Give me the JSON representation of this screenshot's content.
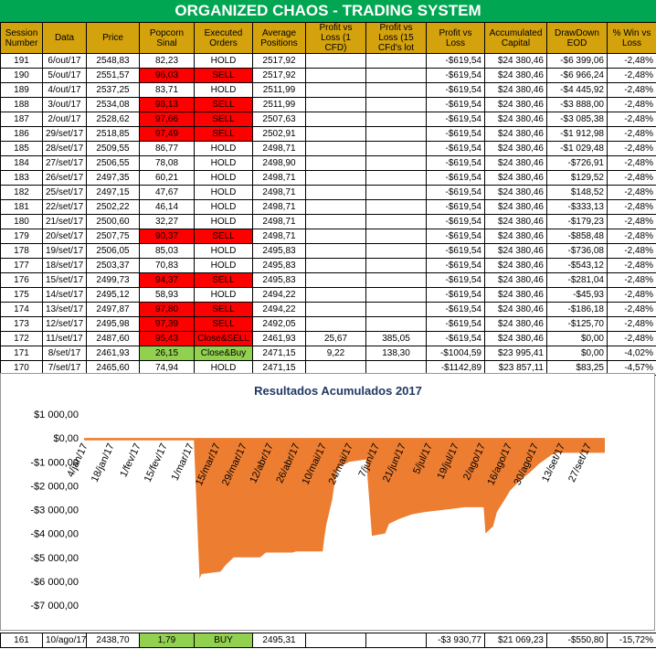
{
  "header": {
    "title": "ORGANIZED CHAOS - TRADING SYSTEM"
  },
  "table": {
    "columns": [
      "Session Number",
      "Data",
      "Price",
      "Popcorn Sinal",
      "Executed Orders",
      "Average Positions",
      "Profit vs Loss (1 CFD)",
      "Profit vs Loss (15 CFd's lot",
      "Profit vs Loss",
      "Accumulated Capital",
      "DrawDown EOD",
      "% Win vs Loss"
    ],
    "rows": [
      {
        "cells": [
          "191",
          "6/out/17",
          "2548,83",
          "82,23",
          "HOLD",
          "2517,92",
          null,
          null,
          "-$619,54",
          "$24 380,46",
          "-$6 399,06",
          "-2,48%"
        ]
      },
      {
        "cells": [
          "190",
          "5/out/17",
          "2551,57",
          "96,03",
          "SELL",
          "2517,92",
          null,
          null,
          "-$619,54",
          "$24 380,46",
          "-$6 966,24",
          "-2,48%"
        ],
        "signal_color": "#ff0000"
      },
      {
        "cells": [
          "189",
          "4/out/17",
          "2537,25",
          "83,71",
          "HOLD",
          "2511,99",
          null,
          null,
          "-$619,54",
          "$24 380,46",
          "-$4 445,92",
          "-2,48%"
        ]
      },
      {
        "cells": [
          "188",
          "3/out/17",
          "2534,08",
          "98,13",
          "SELL",
          "2511,99",
          null,
          null,
          "-$619,54",
          "$24 380,46",
          "-$3 888,00",
          "-2,48%"
        ],
        "signal_color": "#ff0000"
      },
      {
        "cells": [
          "187",
          "2/out/17",
          "2528,62",
          "97,66",
          "SELL",
          "2507,63",
          null,
          null,
          "-$619,54",
          "$24 380,46",
          "-$3 085,38",
          "-2,48%"
        ],
        "signal_color": "#ff0000"
      },
      {
        "cells": [
          "186",
          "29/set/17",
          "2518,85",
          "97,49",
          "SELL",
          "2502,91",
          null,
          null,
          "-$619,54",
          "$24 380,46",
          "-$1 912,98",
          "-2,48%"
        ],
        "signal_color": "#ff0000"
      },
      {
        "cells": [
          "185",
          "28/set/17",
          "2509,55",
          "86,77",
          "HOLD",
          "2498,71",
          null,
          null,
          "-$619,54",
          "$24 380,46",
          "-$1 029,48",
          "-2,48%"
        ]
      },
      {
        "cells": [
          "184",
          "27/set/17",
          "2506,55",
          "78,08",
          "HOLD",
          "2498,90",
          null,
          null,
          "-$619,54",
          "$24 380,46",
          "-$726,91",
          "-2,48%"
        ]
      },
      {
        "cells": [
          "183",
          "26/set/17",
          "2497,35",
          "60,21",
          "HOLD",
          "2498,71",
          null,
          null,
          "-$619,54",
          "$24 380,46",
          "$129,52",
          "-2,48%"
        ]
      },
      {
        "cells": [
          "182",
          "25/set/17",
          "2497,15",
          "47,67",
          "HOLD",
          "2498,71",
          null,
          null,
          "-$619,54",
          "$24 380,46",
          "$148,52",
          "-2,48%"
        ]
      },
      {
        "cells": [
          "181",
          "22/set/17",
          "2502,22",
          "46,14",
          "HOLD",
          "2498,71",
          null,
          null,
          "-$619,54",
          "$24 380,46",
          "-$333,13",
          "-2,48%"
        ]
      },
      {
        "cells": [
          "180",
          "21/set/17",
          "2500,60",
          "32,27",
          "HOLD",
          "2498,71",
          null,
          null,
          "-$619,54",
          "$24 380,46",
          "-$179,23",
          "-2,48%"
        ]
      },
      {
        "cells": [
          "179",
          "20/set/17",
          "2507,75",
          "90,37",
          "SELL",
          "2498,71",
          null,
          null,
          "-$619,54",
          "$24 380,46",
          "-$858,48",
          "-2,48%"
        ],
        "signal_color": "#ff0000"
      },
      {
        "cells": [
          "178",
          "19/set/17",
          "2506,05",
          "85,03",
          "HOLD",
          "2495,83",
          null,
          null,
          "-$619,54",
          "$24 380,46",
          "-$736,08",
          "-2,48%"
        ]
      },
      {
        "cells": [
          "177",
          "18/set/17",
          "2503,37",
          "70,83",
          "HOLD",
          "2495,83",
          null,
          null,
          "-$619,54",
          "$24 380,46",
          "-$543,12",
          "-2,48%"
        ]
      },
      {
        "cells": [
          "176",
          "15/set/17",
          "2499,73",
          "94,37",
          "SELL",
          "2495,83",
          null,
          null,
          "-$619,54",
          "$24 380,46",
          "-$281,04",
          "-2,48%"
        ],
        "signal_color": "#ff0000"
      },
      {
        "cells": [
          "175",
          "14/set/17",
          "2495,12",
          "58,93",
          "HOLD",
          "2494,22",
          null,
          null,
          "-$619,54",
          "$24 380,46",
          "-$45,93",
          "-2,48%"
        ]
      },
      {
        "cells": [
          "174",
          "13/set/17",
          "2497,87",
          "97,80",
          "SELL",
          "2494,22",
          null,
          null,
          "-$619,54",
          "$24 380,46",
          "-$186,18",
          "-2,48%"
        ],
        "signal_color": "#ff0000"
      },
      {
        "cells": [
          "173",
          "12/set/17",
          "2495,98",
          "97,39",
          "SELL",
          "2492,05",
          null,
          null,
          "-$619,54",
          "$24 380,46",
          "-$125,70",
          "-2,48%"
        ],
        "signal_color": "#ff0000"
      },
      {
        "cells": [
          "172",
          "11/set/17",
          "2487,60",
          "95,43",
          "Close&SELL",
          "2461,93",
          "25,67",
          "385,05",
          "-$619,54",
          "$24 380,46",
          "$0,00",
          "-2,48%"
        ],
        "signal_color": "#ff0000"
      },
      {
        "cells": [
          "171",
          "8/set/17",
          "2461,93",
          "26,15",
          "Close&Buy",
          "2471,15",
          "9,22",
          "138,30",
          "-$1004,59",
          "$23 995,41",
          "$0,00",
          "-4,02%"
        ],
        "signal_color": "#92d050"
      },
      {
        "cells": [
          "170",
          "7/set/17",
          "2465,60",
          "74,94",
          "HOLD",
          "2471,15",
          null,
          null,
          "-$1142,89",
          "$23 857,11",
          "$83,25",
          "-4,57%"
        ]
      },
      {
        "cells": [
          "161",
          "10/ago/17",
          "2438,70",
          "1,79",
          "BUY",
          "2495,31",
          null,
          null,
          "-$3 930,77",
          "$21 069,23",
          "-$550,80",
          "-15,72%"
        ],
        "signal_color": "#92d050"
      }
    ]
  },
  "chart_data": {
    "type": "area",
    "title": "Resultados Acumulados 2017",
    "color": "#ed7d31",
    "x": [
      "2017-01-04",
      "2017-03-03",
      "2017-03-06",
      "2017-03-07",
      "2017-03-17",
      "2017-03-20",
      "2017-03-24",
      "2017-04-07",
      "2017-04-10",
      "2017-04-24",
      "2017-04-26",
      "2017-05-10",
      "2017-05-11",
      "2017-05-12",
      "2017-05-15",
      "2017-05-17",
      "2017-05-19",
      "2017-05-24",
      "2017-06-02",
      "2017-06-05",
      "2017-06-12",
      "2017-06-14",
      "2017-06-19",
      "2017-06-26",
      "2017-07-03",
      "2017-07-14",
      "2017-07-24",
      "2017-08-03",
      "2017-08-04",
      "2017-08-08",
      "2017-08-10",
      "2017-08-14",
      "2017-08-17",
      "2017-08-22",
      "2017-08-28",
      "2017-09-01",
      "2017-09-08",
      "2017-09-11",
      "2017-10-06"
    ],
    "values": [
      -100,
      -100,
      -5900,
      -5700,
      -5600,
      -5300,
      -5000,
      -5000,
      -4800,
      -4800,
      -4750,
      -4750,
      -4100,
      -3600,
      -2600,
      -1500,
      -1200,
      -1000,
      -900,
      -4100,
      -4000,
      -3600,
      -3400,
      -3200,
      -3100,
      -3000,
      -2900,
      -2900,
      -4000,
      -3700,
      -3100,
      -2600,
      -2200,
      -1800,
      -1400,
      -1100,
      -700,
      -620,
      -620
    ],
    "xlim": [
      "2017-01-04",
      "2017-10-06"
    ],
    "xticks": [
      {
        "value": "2017-01-04",
        "label": "4/jan/17"
      },
      {
        "value": "2017-01-18",
        "label": "18/jan/17"
      },
      {
        "value": "2017-02-01",
        "label": "1/fev/17"
      },
      {
        "value": "2017-02-15",
        "label": "15/fev/17"
      },
      {
        "value": "2017-03-01",
        "label": "1/mar/17"
      },
      {
        "value": "2017-03-15",
        "label": "15/mar/17"
      },
      {
        "value": "2017-03-29",
        "label": "29/mar/17"
      },
      {
        "value": "2017-04-12",
        "label": "12/abr/17"
      },
      {
        "value": "2017-04-26",
        "label": "26/abr/17"
      },
      {
        "value": "2017-05-10",
        "label": "10/mai/17"
      },
      {
        "value": "2017-05-24",
        "label": "24/mai/17"
      },
      {
        "value": "2017-06-07",
        "label": "7/jun/17"
      },
      {
        "value": "2017-06-21",
        "label": "21/jun/17"
      },
      {
        "value": "2017-07-05",
        "label": "5/jul/17"
      },
      {
        "value": "2017-07-19",
        "label": "19/jul/17"
      },
      {
        "value": "2017-08-02",
        "label": "2/ago/17"
      },
      {
        "value": "2017-08-16",
        "label": "16/ago/17"
      },
      {
        "value": "2017-08-30",
        "label": "30/ago/17"
      },
      {
        "value": "2017-09-13",
        "label": "13/set/17"
      },
      {
        "value": "2017-09-27",
        "label": "27/set/17"
      }
    ],
    "ylim": [
      -7000,
      1000
    ],
    "yticks": [
      {
        "value": 1000,
        "label": "$1 000,00"
      },
      {
        "value": 0,
        "label": "$0,00"
      },
      {
        "value": -1000,
        "label": "-$1 000,00"
      },
      {
        "value": -2000,
        "label": "-$2 000,00"
      },
      {
        "value": -3000,
        "label": "-$3 000,00"
      },
      {
        "value": -4000,
        "label": "-$4 000,00"
      },
      {
        "value": -5000,
        "label": "-$5 000,00"
      },
      {
        "value": -6000,
        "label": "-$6 000,00"
      },
      {
        "value": -7000,
        "label": "-$7 000,00"
      }
    ]
  }
}
